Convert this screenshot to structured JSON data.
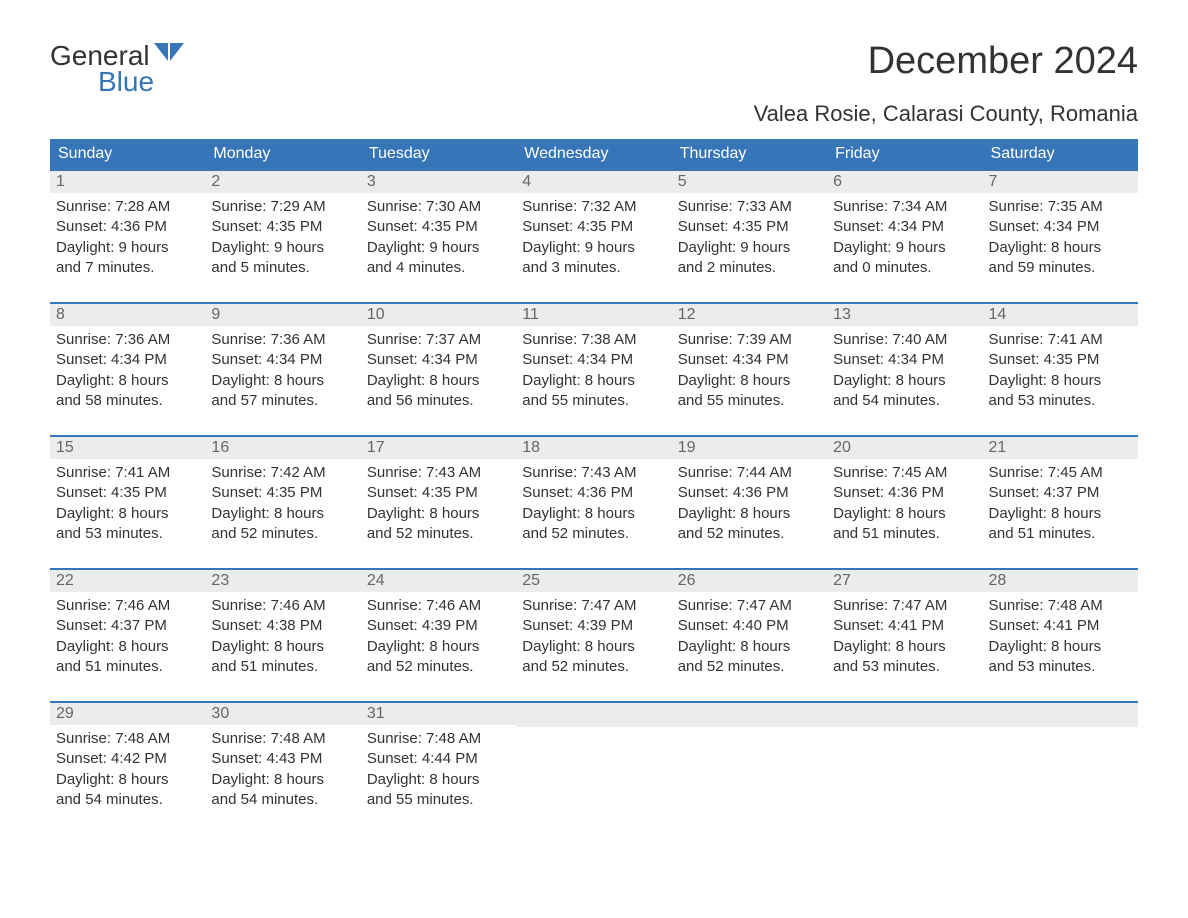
{
  "logo": {
    "general": "General",
    "blue": "Blue"
  },
  "title": "December 2024",
  "location": "Valea Rosie, Calarasi County, Romania",
  "colors": {
    "header_bg": "#3676b8",
    "daynum_bg": "#ececec",
    "text": "#333333",
    "accent": "#3676b8"
  },
  "dow": [
    "Sunday",
    "Monday",
    "Tuesday",
    "Wednesday",
    "Thursday",
    "Friday",
    "Saturday"
  ],
  "weeks": [
    [
      {
        "n": "1",
        "sr": "Sunrise: 7:28 AM",
        "ss": "Sunset: 4:36 PM",
        "d1": "Daylight: 9 hours",
        "d2": "and 7 minutes."
      },
      {
        "n": "2",
        "sr": "Sunrise: 7:29 AM",
        "ss": "Sunset: 4:35 PM",
        "d1": "Daylight: 9 hours",
        "d2": "and 5 minutes."
      },
      {
        "n": "3",
        "sr": "Sunrise: 7:30 AM",
        "ss": "Sunset: 4:35 PM",
        "d1": "Daylight: 9 hours",
        "d2": "and 4 minutes."
      },
      {
        "n": "4",
        "sr": "Sunrise: 7:32 AM",
        "ss": "Sunset: 4:35 PM",
        "d1": "Daylight: 9 hours",
        "d2": "and 3 minutes."
      },
      {
        "n": "5",
        "sr": "Sunrise: 7:33 AM",
        "ss": "Sunset: 4:35 PM",
        "d1": "Daylight: 9 hours",
        "d2": "and 2 minutes."
      },
      {
        "n": "6",
        "sr": "Sunrise: 7:34 AM",
        "ss": "Sunset: 4:34 PM",
        "d1": "Daylight: 9 hours",
        "d2": "and 0 minutes."
      },
      {
        "n": "7",
        "sr": "Sunrise: 7:35 AM",
        "ss": "Sunset: 4:34 PM",
        "d1": "Daylight: 8 hours",
        "d2": "and 59 minutes."
      }
    ],
    [
      {
        "n": "8",
        "sr": "Sunrise: 7:36 AM",
        "ss": "Sunset: 4:34 PM",
        "d1": "Daylight: 8 hours",
        "d2": "and 58 minutes."
      },
      {
        "n": "9",
        "sr": "Sunrise: 7:36 AM",
        "ss": "Sunset: 4:34 PM",
        "d1": "Daylight: 8 hours",
        "d2": "and 57 minutes."
      },
      {
        "n": "10",
        "sr": "Sunrise: 7:37 AM",
        "ss": "Sunset: 4:34 PM",
        "d1": "Daylight: 8 hours",
        "d2": "and 56 minutes."
      },
      {
        "n": "11",
        "sr": "Sunrise: 7:38 AM",
        "ss": "Sunset: 4:34 PM",
        "d1": "Daylight: 8 hours",
        "d2": "and 55 minutes."
      },
      {
        "n": "12",
        "sr": "Sunrise: 7:39 AM",
        "ss": "Sunset: 4:34 PM",
        "d1": "Daylight: 8 hours",
        "d2": "and 55 minutes."
      },
      {
        "n": "13",
        "sr": "Sunrise: 7:40 AM",
        "ss": "Sunset: 4:34 PM",
        "d1": "Daylight: 8 hours",
        "d2": "and 54 minutes."
      },
      {
        "n": "14",
        "sr": "Sunrise: 7:41 AM",
        "ss": "Sunset: 4:35 PM",
        "d1": "Daylight: 8 hours",
        "d2": "and 53 minutes."
      }
    ],
    [
      {
        "n": "15",
        "sr": "Sunrise: 7:41 AM",
        "ss": "Sunset: 4:35 PM",
        "d1": "Daylight: 8 hours",
        "d2": "and 53 minutes."
      },
      {
        "n": "16",
        "sr": "Sunrise: 7:42 AM",
        "ss": "Sunset: 4:35 PM",
        "d1": "Daylight: 8 hours",
        "d2": "and 52 minutes."
      },
      {
        "n": "17",
        "sr": "Sunrise: 7:43 AM",
        "ss": "Sunset: 4:35 PM",
        "d1": "Daylight: 8 hours",
        "d2": "and 52 minutes."
      },
      {
        "n": "18",
        "sr": "Sunrise: 7:43 AM",
        "ss": "Sunset: 4:36 PM",
        "d1": "Daylight: 8 hours",
        "d2": "and 52 minutes."
      },
      {
        "n": "19",
        "sr": "Sunrise: 7:44 AM",
        "ss": "Sunset: 4:36 PM",
        "d1": "Daylight: 8 hours",
        "d2": "and 52 minutes."
      },
      {
        "n": "20",
        "sr": "Sunrise: 7:45 AM",
        "ss": "Sunset: 4:36 PM",
        "d1": "Daylight: 8 hours",
        "d2": "and 51 minutes."
      },
      {
        "n": "21",
        "sr": "Sunrise: 7:45 AM",
        "ss": "Sunset: 4:37 PM",
        "d1": "Daylight: 8 hours",
        "d2": "and 51 minutes."
      }
    ],
    [
      {
        "n": "22",
        "sr": "Sunrise: 7:46 AM",
        "ss": "Sunset: 4:37 PM",
        "d1": "Daylight: 8 hours",
        "d2": "and 51 minutes."
      },
      {
        "n": "23",
        "sr": "Sunrise: 7:46 AM",
        "ss": "Sunset: 4:38 PM",
        "d1": "Daylight: 8 hours",
        "d2": "and 51 minutes."
      },
      {
        "n": "24",
        "sr": "Sunrise: 7:46 AM",
        "ss": "Sunset: 4:39 PM",
        "d1": "Daylight: 8 hours",
        "d2": "and 52 minutes."
      },
      {
        "n": "25",
        "sr": "Sunrise: 7:47 AM",
        "ss": "Sunset: 4:39 PM",
        "d1": "Daylight: 8 hours",
        "d2": "and 52 minutes."
      },
      {
        "n": "26",
        "sr": "Sunrise: 7:47 AM",
        "ss": "Sunset: 4:40 PM",
        "d1": "Daylight: 8 hours",
        "d2": "and 52 minutes."
      },
      {
        "n": "27",
        "sr": "Sunrise: 7:47 AM",
        "ss": "Sunset: 4:41 PM",
        "d1": "Daylight: 8 hours",
        "d2": "and 53 minutes."
      },
      {
        "n": "28",
        "sr": "Sunrise: 7:48 AM",
        "ss": "Sunset: 4:41 PM",
        "d1": "Daylight: 8 hours",
        "d2": "and 53 minutes."
      }
    ],
    [
      {
        "n": "29",
        "sr": "Sunrise: 7:48 AM",
        "ss": "Sunset: 4:42 PM",
        "d1": "Daylight: 8 hours",
        "d2": "and 54 minutes."
      },
      {
        "n": "30",
        "sr": "Sunrise: 7:48 AM",
        "ss": "Sunset: 4:43 PM",
        "d1": "Daylight: 8 hours",
        "d2": "and 54 minutes."
      },
      {
        "n": "31",
        "sr": "Sunrise: 7:48 AM",
        "ss": "Sunset: 4:44 PM",
        "d1": "Daylight: 8 hours",
        "d2": "and 55 minutes."
      },
      null,
      null,
      null,
      null
    ]
  ]
}
